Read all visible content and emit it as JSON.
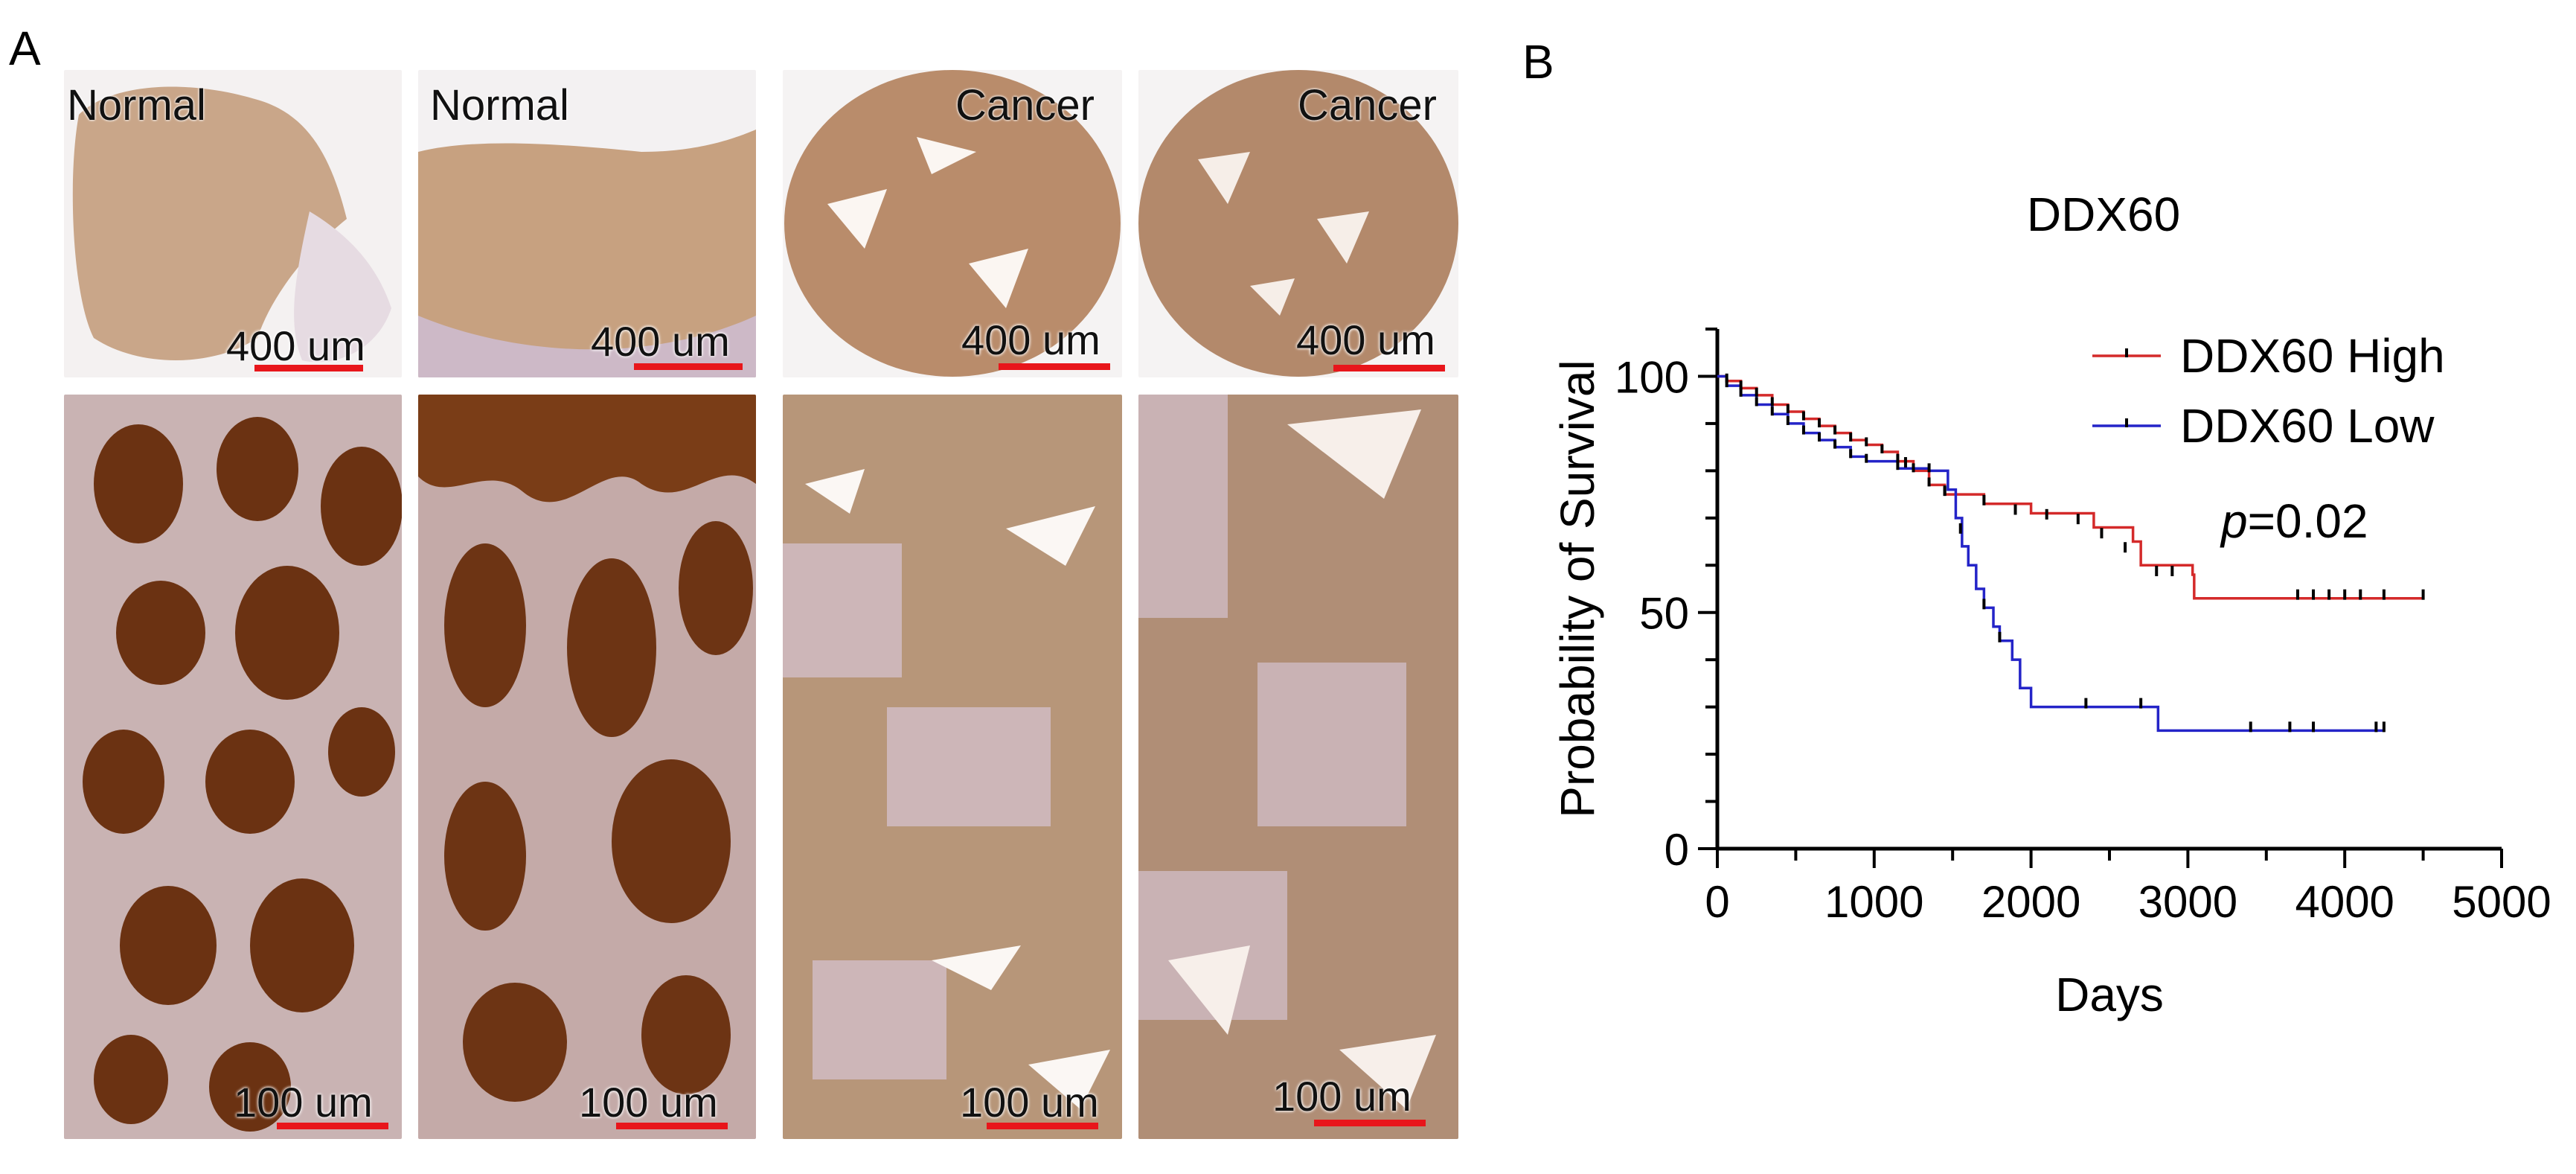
{
  "panel_a": {
    "letter": "A",
    "tiles_top": [
      {
        "label": "Normal",
        "scale": "400 um",
        "kind": "normal"
      },
      {
        "label": "Normal",
        "scale": "400 um",
        "kind": "normal"
      },
      {
        "label": "Cancer",
        "scale": "400 um",
        "kind": "cancer"
      },
      {
        "label": "Cancer",
        "scale": "400 um",
        "kind": "cancer"
      }
    ],
    "tiles_bottom": [
      {
        "scale": "100 um",
        "kind": "normal"
      },
      {
        "scale": "100 um",
        "kind": "normal"
      },
      {
        "scale": "100 um",
        "kind": "cancer"
      },
      {
        "scale": "100 um",
        "kind": "cancer"
      }
    ],
    "colors": {
      "scale_bar": "#e8161b",
      "stain_dark": "#6b3212",
      "stain_mid": "#b07a50",
      "stain_light": "#d8bea2"
    }
  },
  "panel_b": {
    "letter": "B"
  },
  "chart_data": {
    "type": "line",
    "subtype": "kaplan-meier",
    "title": "DDX60",
    "xlabel": "Days",
    "ylabel": "Probability of Survival",
    "xlim": [
      0,
      5000
    ],
    "ylim": [
      0,
      110
    ],
    "xticks": [
      0,
      1000,
      2000,
      3000,
      4000,
      5000
    ],
    "yticks": [
      0,
      50,
      100
    ],
    "grid": false,
    "legend_position": "top-right",
    "annotation": {
      "italic": "p",
      "text": "=0.02"
    },
    "series": [
      {
        "name": "DDX60 High",
        "color": "#d42a2a",
        "steps": [
          [
            0,
            100
          ],
          [
            60,
            99
          ],
          [
            150,
            97.5
          ],
          [
            250,
            96
          ],
          [
            350,
            94
          ],
          [
            450,
            92.5
          ],
          [
            550,
            91
          ],
          [
            650,
            89.5
          ],
          [
            750,
            88
          ],
          [
            850,
            86.5
          ],
          [
            950,
            85.5
          ],
          [
            1050,
            84
          ],
          [
            1150,
            82
          ],
          [
            1250,
            80
          ],
          [
            1350,
            77
          ],
          [
            1450,
            75
          ],
          [
            1700,
            73
          ],
          [
            2000,
            71
          ],
          [
            2400,
            68
          ],
          [
            2650,
            65
          ],
          [
            2700,
            60
          ],
          [
            3030,
            58
          ],
          [
            3040,
            53
          ],
          [
            4500,
            53
          ]
        ],
        "censored": [
          [
            1450,
            75
          ],
          [
            1700,
            73
          ],
          [
            1900,
            71
          ],
          [
            2100,
            70
          ],
          [
            2300,
            69
          ],
          [
            2450,
            66
          ],
          [
            2600,
            63
          ],
          [
            2800,
            58
          ],
          [
            2900,
            58
          ],
          [
            3700,
            53
          ],
          [
            3800,
            53
          ],
          [
            3900,
            53
          ],
          [
            4000,
            53
          ],
          [
            4100,
            53
          ],
          [
            4250,
            53
          ],
          [
            4500,
            53
          ]
        ]
      },
      {
        "name": "DDX60 Low",
        "color": "#2424c8",
        "steps": [
          [
            0,
            100
          ],
          [
            60,
            98
          ],
          [
            150,
            96
          ],
          [
            250,
            94
          ],
          [
            350,
            92
          ],
          [
            450,
            90
          ],
          [
            550,
            88
          ],
          [
            650,
            86.5
          ],
          [
            750,
            85
          ],
          [
            850,
            83
          ],
          [
            950,
            82
          ],
          [
            1150,
            80.5
          ],
          [
            1350,
            80
          ],
          [
            1470,
            76
          ],
          [
            1520,
            70
          ],
          [
            1560,
            64
          ],
          [
            1600,
            60
          ],
          [
            1650,
            55
          ],
          [
            1700,
            51
          ],
          [
            1760,
            47
          ],
          [
            1800,
            44
          ],
          [
            1880,
            40
          ],
          [
            1930,
            34
          ],
          [
            2000,
            30
          ],
          [
            2800,
            30
          ],
          [
            2810,
            25
          ],
          [
            4250,
            25
          ]
        ],
        "censored": [
          [
            1200,
            81
          ],
          [
            1550,
            67
          ],
          [
            1700,
            51
          ],
          [
            1800,
            44
          ],
          [
            2350,
            30
          ],
          [
            2700,
            30
          ],
          [
            3400,
            25
          ],
          [
            3650,
            25
          ],
          [
            3800,
            25
          ],
          [
            4200,
            25
          ],
          [
            4250,
            25
          ]
        ]
      }
    ]
  }
}
